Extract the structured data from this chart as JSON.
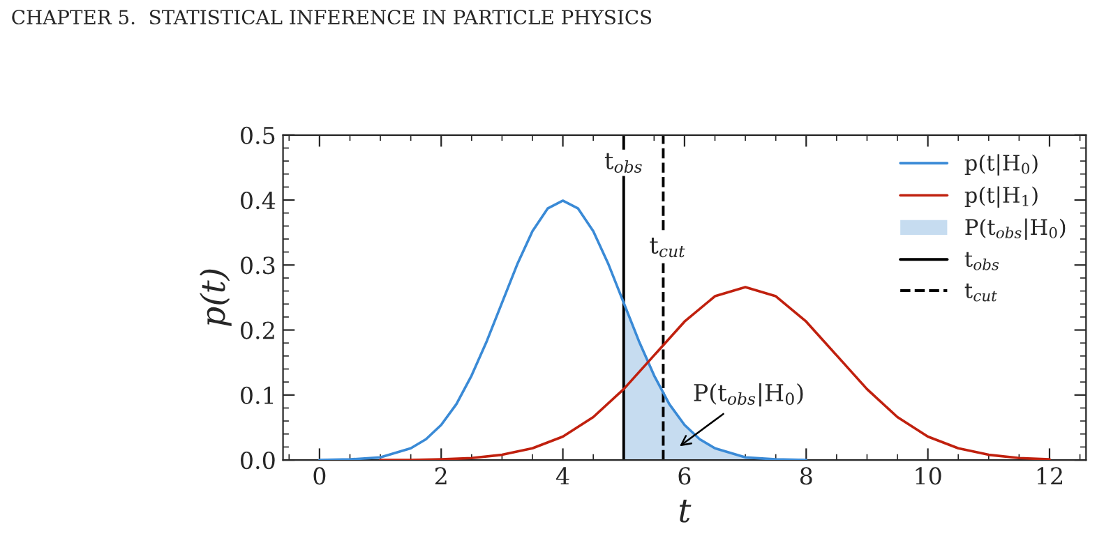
{
  "chart_data": {
    "type": "line",
    "xlabel": "t",
    "ylabel": "p(t)",
    "xlim": [
      -0.6,
      12.6
    ],
    "xticks": [
      0,
      2,
      4,
      6,
      8,
      10,
      12
    ],
    "ylim": [
      0,
      0.5
    ],
    "yticks": [
      {
        "value": 0,
        "label": "0.0"
      },
      {
        "value": 0.1,
        "label": "0.1"
      },
      {
        "value": 0.2,
        "label": "0.2"
      },
      {
        "value": 0.3,
        "label": "0.3"
      },
      {
        "value": 0.4,
        "label": "0.4"
      },
      {
        "value": 0.5,
        "label": "0.5"
      }
    ],
    "series": [
      {
        "name": "p(t|H$_{0}$)",
        "color": "#3a8ad6",
        "x": [
          0,
          0.5,
          1,
          1.5,
          1.75,
          2,
          2.25,
          2.5,
          2.75,
          3,
          3.25,
          3.5,
          3.75,
          4,
          4.25,
          4.5,
          4.75,
          5,
          5.25,
          5.5,
          5.75,
          6,
          6.25,
          6.5,
          7,
          7.5,
          8
        ],
        "values": [
          0,
          0.001,
          0.004,
          0.018,
          0.032,
          0.054,
          0.086,
          0.13,
          0.183,
          0.242,
          0.301,
          0.352,
          0.387,
          0.399,
          0.387,
          0.352,
          0.301,
          0.242,
          0.183,
          0.13,
          0.086,
          0.054,
          0.032,
          0.018,
          0.004,
          0.001,
          0
        ]
      },
      {
        "name": "p(t|H$_{1}$)",
        "color": "#c0200e",
        "x": [
          1,
          1.5,
          2,
          2.5,
          3,
          3.5,
          4,
          4.5,
          5,
          5.5,
          6,
          6.5,
          7,
          7.5,
          8,
          8.5,
          9,
          9.5,
          10,
          10.5,
          11,
          11.5,
          12
        ],
        "values": [
          0,
          0,
          0.001,
          0.003,
          0.008,
          0.018,
          0.036,
          0.066,
          0.109,
          0.161,
          0.213,
          0.252,
          0.266,
          0.252,
          0.213,
          0.161,
          0.109,
          0.066,
          0.036,
          0.018,
          0.008,
          0.003,
          0.001
        ]
      },
      {
        "name": "P(t$_{obs}$|H$_{0}$)",
        "color": "#c6dcf0",
        "type": "area",
        "x": [
          5,
          5.25,
          5.5,
          5.75,
          6,
          6.25,
          6.5,
          7,
          7.5,
          8
        ],
        "values": [
          0.242,
          0.183,
          0.13,
          0.086,
          0.054,
          0.032,
          0.018,
          0.004,
          0.001,
          0
        ]
      }
    ],
    "ref_lines": [
      {
        "axis": "x",
        "value": 5,
        "label": "t$_{obs}$",
        "color": "#000000",
        "line_style": "solid"
      },
      {
        "axis": "x",
        "value": 5.65,
        "label": "t$_{cut}$",
        "color": "#000000",
        "line_style": "dashed"
      }
    ],
    "annotations": [
      "CHAPTER 5.  STATISTICAL INFERENCE IN PARTICLE PHYSICS",
      "P(t$_{obs}$|H$_{0}$)"
    ],
    "legend": "top right",
    "grid": false
  }
}
